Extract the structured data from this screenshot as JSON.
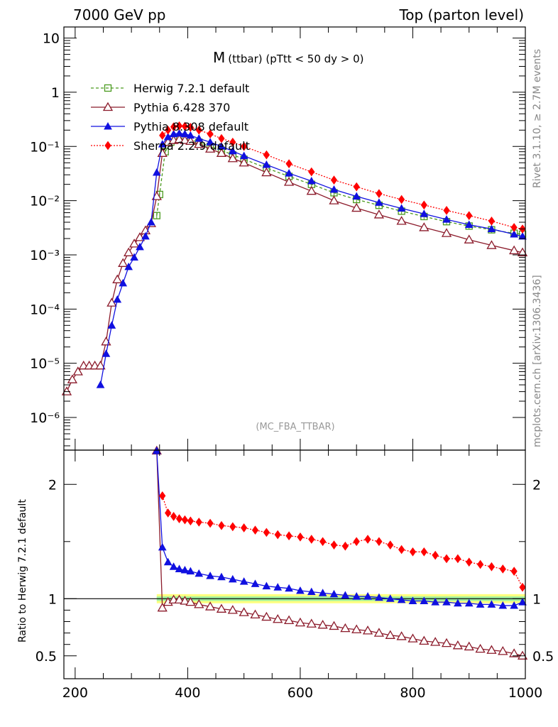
{
  "header": {
    "left": "7000 GeV pp",
    "right": "Top (parton level)"
  },
  "plot_title": {
    "main": "M",
    "sub": "(ttbar) (pTtt < 50 dy > 0)"
  },
  "side_labels": {
    "rivet": "Rivet 3.1.10, ≥ 2.7M events",
    "mcplots": "mcplots.cern.ch [arXiv:1306.3436]"
  },
  "watermark": "(MC_FBA_TTBAR)",
  "ratio_ylabel": "Ratio to Herwig 7.2.1 default",
  "colors": {
    "herwig": "#4a9a1e",
    "pythia6": "#8b1a2a",
    "pythia8": "#1010e0",
    "sherpa": "#ff0000",
    "band_outer": "#ffff80",
    "band_inner": "#a0f0a0"
  },
  "chart_data": [
    {
      "type": "line",
      "panel": "main",
      "yscale": "log",
      "xlim": [
        180,
        1000
      ],
      "ylim": [
        2.5e-07,
        16
      ],
      "y_ticks": [
        {
          "value": 10,
          "label": "10"
        },
        {
          "value": 1,
          "label": "1"
        },
        {
          "value": 0.1,
          "label": "10⁻¹"
        },
        {
          "value": 0.01,
          "label": "10⁻²"
        },
        {
          "value": 0.001,
          "label": "10⁻³"
        },
        {
          "value": 0.0001,
          "label": "10⁻⁴"
        },
        {
          "value": 1e-05,
          "label": "10⁻⁵"
        },
        {
          "value": 1e-06,
          "label": "10⁻⁶"
        }
      ],
      "legend_position": "top-left",
      "series": [
        {
          "name": "Herwig 7.2.1 default",
          "x": [
            345,
            350,
            360,
            370,
            380,
            390,
            400,
            420,
            440,
            460,
            480,
            500,
            540,
            580,
            620,
            660,
            700,
            740,
            780,
            820,
            860,
            900,
            940,
            980,
            995
          ],
          "values": [
            0.0053,
            0.013,
            0.08,
            0.12,
            0.135,
            0.14,
            0.135,
            0.12,
            0.1,
            0.085,
            0.07,
            0.058,
            0.04,
            0.028,
            0.02,
            0.014,
            0.0105,
            0.0082,
            0.0064,
            0.0051,
            0.0041,
            0.0034,
            0.0029,
            0.0025,
            0.0024
          ]
        },
        {
          "name": "Pythia 6.428 370",
          "x": [
            185,
            195,
            205,
            215,
            225,
            235,
            245,
            255,
            265,
            275,
            285,
            295,
            305,
            315,
            325,
            335,
            345,
            355,
            365,
            375,
            385,
            395,
            405,
            420,
            440,
            460,
            480,
            500,
            540,
            580,
            620,
            660,
            700,
            740,
            780,
            820,
            860,
            900,
            940,
            980,
            995
          ],
          "values": [
            3e-06,
            5e-06,
            7e-06,
            9e-06,
            9e-06,
            9e-06,
            9e-06,
            2.5e-05,
            0.00013,
            0.00035,
            0.0007,
            0.0011,
            0.0016,
            0.0021,
            0.0028,
            0.0038,
            0.012,
            0.075,
            0.12,
            0.13,
            0.135,
            0.13,
            0.125,
            0.11,
            0.09,
            0.075,
            0.06,
            0.05,
            0.033,
            0.022,
            0.015,
            0.01,
            0.0073,
            0.0055,
            0.0042,
            0.0032,
            0.0025,
            0.0019,
            0.0015,
            0.0012,
            0.0011
          ]
        },
        {
          "name": "Pythia 8.308 default",
          "x": [
            245,
            255,
            265,
            275,
            285,
            295,
            305,
            315,
            325,
            335,
            345,
            355,
            365,
            375,
            385,
            395,
            405,
            420,
            440,
            460,
            480,
            500,
            540,
            580,
            620,
            660,
            700,
            740,
            780,
            820,
            860,
            900,
            940,
            980,
            995
          ],
          "values": [
            4e-06,
            1.5e-05,
            5e-05,
            0.00015,
            0.0003,
            0.0006,
            0.0009,
            0.0014,
            0.0022,
            0.004,
            0.033,
            0.11,
            0.15,
            0.17,
            0.175,
            0.17,
            0.16,
            0.14,
            0.12,
            0.1,
            0.082,
            0.067,
            0.046,
            0.032,
            0.023,
            0.016,
            0.012,
            0.0092,
            0.0072,
            0.0057,
            0.0045,
            0.0036,
            0.003,
            0.0024,
            0.0022
          ]
        },
        {
          "name": "Sherpa 2.2.9 default",
          "x": [
            355,
            365,
            375,
            385,
            395,
            405,
            420,
            440,
            460,
            480,
            500,
            540,
            580,
            620,
            660,
            700,
            740,
            780,
            820,
            860,
            900,
            940,
            980,
            995
          ],
          "values": [
            0.16,
            0.2,
            0.23,
            0.24,
            0.235,
            0.225,
            0.2,
            0.17,
            0.14,
            0.12,
            0.1,
            0.07,
            0.048,
            0.034,
            0.024,
            0.018,
            0.0135,
            0.0105,
            0.0083,
            0.0066,
            0.0053,
            0.0042,
            0.0032,
            0.003
          ]
        }
      ]
    },
    {
      "type": "line",
      "panel": "ratio",
      "xlim": [
        180,
        1000
      ],
      "ylim": [
        0.3,
        2.3
      ],
      "x_ticks": [
        200,
        400,
        600,
        800,
        1000
      ],
      "y_ticks": [
        0.5,
        1,
        2
      ],
      "reference_line": 1,
      "series": [
        {
          "name": "Pythia 6.428 370",
          "x": [
            345,
            355,
            365,
            375,
            385,
            395,
            405,
            420,
            440,
            460,
            480,
            500,
            520,
            540,
            560,
            580,
            600,
            620,
            640,
            660,
            680,
            700,
            720,
            740,
            760,
            780,
            800,
            820,
            840,
            860,
            880,
            900,
            920,
            940,
            960,
            980,
            995
          ],
          "values": [
            2.3,
            0.92,
            0.97,
            0.99,
            0.99,
            0.98,
            0.97,
            0.95,
            0.93,
            0.91,
            0.9,
            0.88,
            0.86,
            0.84,
            0.82,
            0.81,
            0.79,
            0.78,
            0.77,
            0.76,
            0.74,
            0.73,
            0.72,
            0.7,
            0.68,
            0.67,
            0.65,
            0.63,
            0.62,
            0.61,
            0.59,
            0.58,
            0.56,
            0.55,
            0.54,
            0.52,
            0.5
          ]
        },
        {
          "name": "Pythia 8.308 default",
          "x": [
            345,
            355,
            365,
            375,
            385,
            395,
            405,
            420,
            440,
            460,
            480,
            500,
            520,
            540,
            560,
            580,
            600,
            620,
            640,
            660,
            680,
            700,
            720,
            740,
            760,
            780,
            800,
            820,
            840,
            860,
            880,
            900,
            920,
            940,
            960,
            980,
            995
          ],
          "values": [
            2.3,
            1.45,
            1.32,
            1.28,
            1.26,
            1.25,
            1.24,
            1.22,
            1.2,
            1.19,
            1.17,
            1.15,
            1.13,
            1.11,
            1.1,
            1.09,
            1.07,
            1.06,
            1.05,
            1.04,
            1.03,
            1.02,
            1.02,
            1.01,
            1.0,
            0.99,
            0.98,
            0.98,
            0.97,
            0.97,
            0.96,
            0.96,
            0.95,
            0.95,
            0.94,
            0.94,
            0.97
          ]
        },
        {
          "name": "Sherpa 2.2.9 default",
          "x": [
            355,
            365,
            375,
            385,
            395,
            405,
            420,
            440,
            460,
            480,
            500,
            520,
            540,
            560,
            580,
            600,
            620,
            640,
            660,
            680,
            700,
            720,
            740,
            760,
            780,
            800,
            820,
            840,
            860,
            880,
            900,
            920,
            940,
            960,
            980,
            995
          ],
          "values": [
            1.9,
            1.75,
            1.72,
            1.7,
            1.69,
            1.68,
            1.67,
            1.66,
            1.64,
            1.63,
            1.62,
            1.6,
            1.58,
            1.56,
            1.55,
            1.54,
            1.52,
            1.5,
            1.47,
            1.46,
            1.5,
            1.52,
            1.5,
            1.47,
            1.43,
            1.41,
            1.41,
            1.38,
            1.35,
            1.35,
            1.32,
            1.3,
            1.28,
            1.26,
            1.24,
            1.1
          ]
        }
      ]
    }
  ]
}
